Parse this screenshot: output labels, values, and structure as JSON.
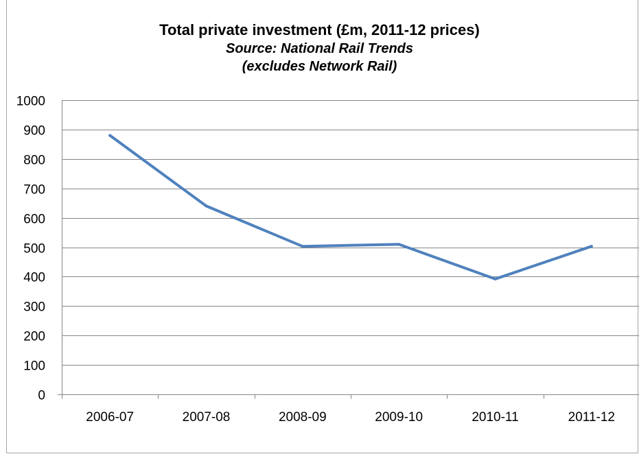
{
  "chart_data": {
    "type": "line",
    "title": "Total private investment (£m, 2011-12 prices)",
    "subtitle_lines": [
      "Source: National Rail  Trends",
      "(excludes Network Rail)"
    ],
    "xlabel": "",
    "ylabel": "",
    "ylim": [
      0,
      1000
    ],
    "yticks": [
      0,
      100,
      200,
      300,
      400,
      500,
      600,
      700,
      800,
      900,
      1000
    ],
    "categories": [
      "2006-07",
      "2007-08",
      "2008-09",
      "2009-10",
      "2010-11",
      "2011-12"
    ],
    "series": [
      {
        "values": [
          880,
          640,
          503,
          510,
          392,
          503
        ]
      }
    ],
    "grid": true,
    "line_color": "#4f81bd",
    "gridline_color": "#868686"
  }
}
